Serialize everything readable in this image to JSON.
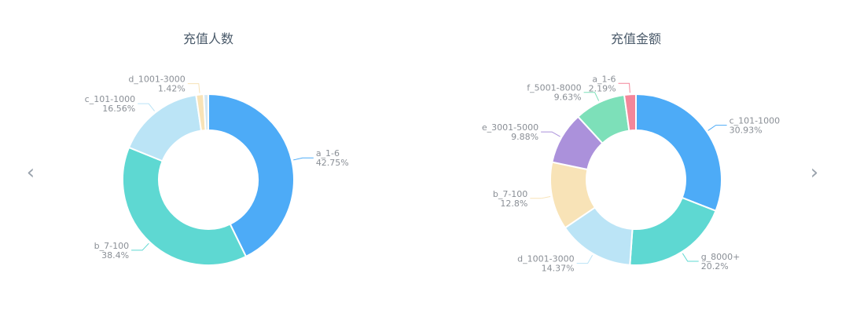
{
  "navigation": {
    "prev_icon": "‹",
    "next_icon": "›"
  },
  "chart_data": [
    {
      "type": "pie",
      "variant": "donut",
      "title": "充值人数",
      "slices": [
        {
          "label": "a_1-6",
          "value": 42.75,
          "display": "42.75%",
          "color": "#4dabf7"
        },
        {
          "label": "b_7-100",
          "value": 38.4,
          "display": "38.4%",
          "color": "#5ed8d2"
        },
        {
          "label": "c_101-1000",
          "value": 16.56,
          "display": "16.56%",
          "color": "#bbe4f6"
        },
        {
          "label": "d_1001-3000",
          "value": 1.42,
          "display": "1.42%",
          "color": "#f8e3b7"
        },
        {
          "label": "",
          "value": 0.87,
          "display": "",
          "color": "#d3e7f3"
        }
      ]
    },
    {
      "type": "pie",
      "variant": "donut",
      "title": "充值金额",
      "slices": [
        {
          "label": "c_101-1000",
          "value": 30.93,
          "display": "30.93%",
          "color": "#4dabf7"
        },
        {
          "label": "g_8000+",
          "value": 20.2,
          "display": "20.2%",
          "color": "#5ed8d2"
        },
        {
          "label": "d_1001-3000",
          "value": 14.37,
          "display": "14.37%",
          "color": "#bbe4f6"
        },
        {
          "label": "b_7-100",
          "value": 12.8,
          "display": "12.8%",
          "color": "#f8e3b7"
        },
        {
          "label": "e_3001-5000",
          "value": 9.88,
          "display": "9.88%",
          "color": "#ab91db"
        },
        {
          "label": "f_5001-8000",
          "value": 9.63,
          "display": "9.63%",
          "color": "#7de0b9"
        },
        {
          "label": "a_1-6",
          "value": 2.19,
          "display": "2.19%",
          "color": "#f4869a"
        }
      ]
    }
  ]
}
